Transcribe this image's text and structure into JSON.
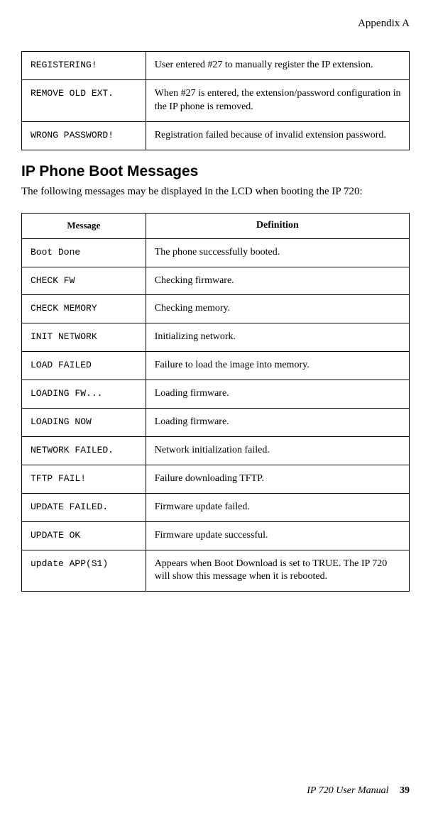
{
  "header": {
    "appendix": "Appendix A"
  },
  "table1": {
    "rows": [
      {
        "msg": "REGISTERING!",
        "def": "User entered #27 to manually register the IP extension."
      },
      {
        "msg": "REMOVE OLD EXT.",
        "def": "When #27 is entered, the extension/password configuration in the IP phone is removed."
      },
      {
        "msg": "WRONG PASSWORD!",
        "def": "Registration failed because of invalid extension password."
      }
    ]
  },
  "section": {
    "heading": "IP Phone Boot Messages",
    "intro": "The following messages may be displayed in the LCD when booting the IP 720:"
  },
  "table2": {
    "headers": {
      "msg": "Message",
      "def": "Definition"
    },
    "rows": [
      {
        "msg": "Boot Done",
        "def": "The phone successfully booted."
      },
      {
        "msg": "CHECK FW",
        "def": "Checking firmware."
      },
      {
        "msg": "CHECK MEMORY",
        "def": "Checking memory."
      },
      {
        "msg": "INIT NETWORK",
        "def": "Initializing network."
      },
      {
        "msg": "LOAD FAILED",
        "def": "Failure to load the image into memory."
      },
      {
        "msg": "LOADING FW...",
        "def": "Loading firmware."
      },
      {
        "msg": "LOADING NOW",
        "def": "Loading firmware."
      },
      {
        "msg": "NETWORK FAILED.",
        "def": "Network initialization failed."
      },
      {
        "msg": "TFTP FAIL!",
        "def": "Failure downloading TFTP."
      },
      {
        "msg": "UPDATE FAILED.",
        "def": "Firmware update failed."
      },
      {
        "msg": "UPDATE OK",
        "def": "Firmware update successful."
      },
      {
        "msg": "update APP(S1)",
        "def": "Appears when Boot Download is set to TRUE. The IP 720 will show this message when it is rebooted."
      }
    ]
  },
  "footer": {
    "title": "IP 720 User Manual",
    "page": "39"
  }
}
